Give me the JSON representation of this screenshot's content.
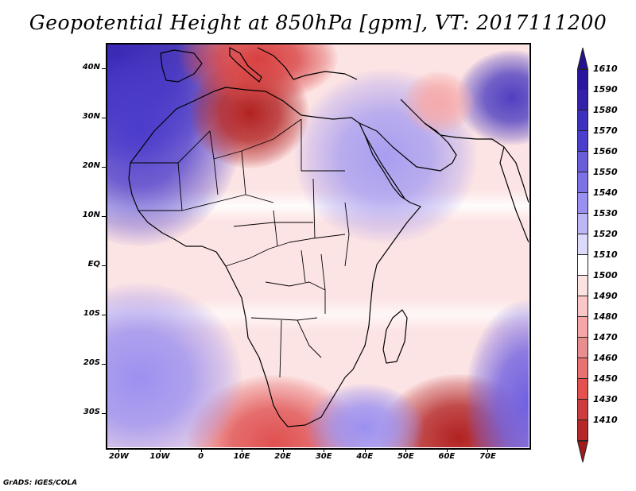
{
  "title": "Geopotential Height at 850hPa [gpm], VT: 2017111200",
  "credit": "GrADS: IGES/COLA",
  "map": {
    "variable": "Geopotential Height",
    "level": "850hPa",
    "units": "gpm",
    "valid_time": "2017111200",
    "lon_range": [
      -23,
      80
    ],
    "lat_range": [
      -37,
      45
    ],
    "lat_ticks": [
      {
        "value": 40,
        "label": "40N"
      },
      {
        "value": 30,
        "label": "30N"
      },
      {
        "value": 20,
        "label": "20N"
      },
      {
        "value": 10,
        "label": "10N"
      },
      {
        "value": 0,
        "label": "EQ"
      },
      {
        "value": -10,
        "label": "10S"
      },
      {
        "value": -20,
        "label": "20S"
      },
      {
        "value": -30,
        "label": "30S"
      }
    ],
    "lon_ticks": [
      {
        "value": -20,
        "label": "20W"
      },
      {
        "value": -10,
        "label": "10W"
      },
      {
        "value": 0,
        "label": "0"
      },
      {
        "value": 10,
        "label": "10E"
      },
      {
        "value": 20,
        "label": "20E"
      },
      {
        "value": 30,
        "label": "30E"
      },
      {
        "value": 40,
        "label": "40E"
      },
      {
        "value": 50,
        "label": "50E"
      },
      {
        "value": 60,
        "label": "60E"
      },
      {
        "value": 70,
        "label": "70E"
      }
    ],
    "features": [
      {
        "name": "high-north-atlantic",
        "lon": -20,
        "lat": 42,
        "value": 1610,
        "color": "#1e0e96"
      },
      {
        "name": "high-northwest-africa",
        "lon": -15,
        "lat": 28,
        "value": 1570,
        "color": "#4b3ccc"
      },
      {
        "name": "low-libya",
        "lon": 12,
        "lat": 31,
        "value": 1430,
        "color": "#b22222"
      },
      {
        "name": "low-mediterranean",
        "lon": 14,
        "lat": 42,
        "value": 1460,
        "color": "#d84040"
      },
      {
        "name": "high-arabia",
        "lon": 45,
        "lat": 22,
        "value": 1530,
        "color": "#a89ef0"
      },
      {
        "name": "high-himalaya",
        "lon": 76,
        "lat": 34,
        "value": 1580,
        "color": "#5040c0"
      },
      {
        "name": "low-iran",
        "lon": 58,
        "lat": 33,
        "value": 1490,
        "color": "#f6aaaa"
      },
      {
        "name": "low-south-indian-ocean",
        "lon": 63,
        "lat": -35,
        "value": 1410,
        "color": "#b22222"
      },
      {
        "name": "low-south-africa-west",
        "lon": 18,
        "lat": -36,
        "value": 1450,
        "color": "#e05050"
      },
      {
        "name": "high-south-atlantic",
        "lon": -15,
        "lat": -23,
        "value": 1540,
        "color": "#9c90f0"
      },
      {
        "name": "high-southeast-indian-ocean",
        "lon": 80,
        "lat": -28,
        "value": 1560,
        "color": "#7060e0"
      },
      {
        "name": "high-mozambique-channel",
        "lon": 40,
        "lat": -33,
        "value": 1540,
        "color": "#9c90f0"
      }
    ]
  },
  "colorbar": {
    "levels": [
      {
        "label": "1610",
        "color": "#2a169e"
      },
      {
        "label": "1590",
        "color": "#3322a8"
      },
      {
        "label": "1580",
        "color": "#3d30bc"
      },
      {
        "label": "1570",
        "color": "#4b3ecc"
      },
      {
        "label": "1560",
        "color": "#6a5ed8"
      },
      {
        "label": "1550",
        "color": "#7c72e4"
      },
      {
        "label": "1540",
        "color": "#9a90f2"
      },
      {
        "label": "1530",
        "color": "#bdb6f6"
      },
      {
        "label": "1520",
        "color": "#dcdafa"
      },
      {
        "label": "1510",
        "color": "#ffffff"
      },
      {
        "label": "1500",
        "color": "#fde2e2"
      },
      {
        "label": "1490",
        "color": "#fbc6c6"
      },
      {
        "label": "1480",
        "color": "#f6a6a6"
      },
      {
        "label": "1470",
        "color": "#e88e8e"
      },
      {
        "label": "1460",
        "color": "#e87272"
      },
      {
        "label": "1450",
        "color": "#e45050"
      },
      {
        "label": "1430",
        "color": "#cc3c3c"
      },
      {
        "label": "1410",
        "color": "#b42828"
      }
    ],
    "top_arrow_color": "#24128e",
    "bottom_arrow_color": "#a01c1c"
  }
}
